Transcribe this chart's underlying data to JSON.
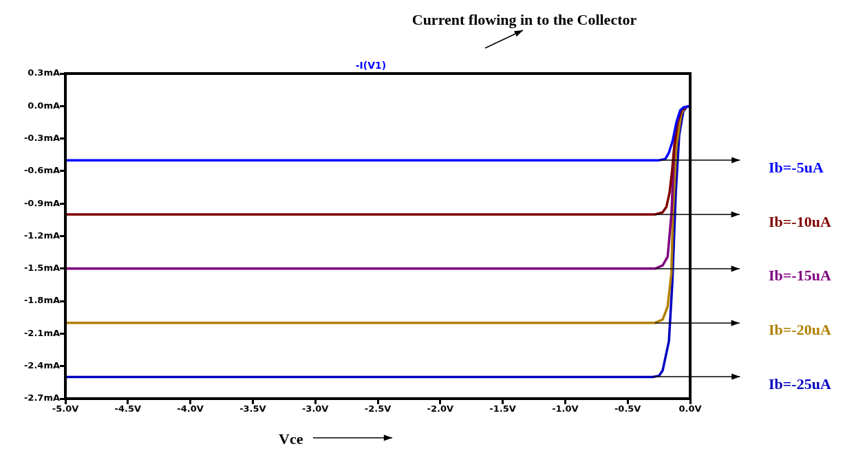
{
  "chart_data": {
    "type": "line",
    "title": "-I(V1)",
    "xlabel": "Vce",
    "annotations": [
      "Current flowing in to the Collector"
    ],
    "xlim": [
      -5,
      0
    ],
    "ylim": [
      -2.7,
      0.3
    ],
    "xticks": [
      {
        "value": -5,
        "label": "-5.0V"
      },
      {
        "value": -4.5,
        "label": "-4.5V"
      },
      {
        "value": -4,
        "label": "-4.0V"
      },
      {
        "value": -3.5,
        "label": "-3.5V"
      },
      {
        "value": -3,
        "label": "-3.0V"
      },
      {
        "value": -2.5,
        "label": "-2.5V"
      },
      {
        "value": -2,
        "label": "-2.0V"
      },
      {
        "value": -1.5,
        "label": "-1.5V"
      },
      {
        "value": -1,
        "label": "-1.0V"
      },
      {
        "value": -0.5,
        "label": "-0.5V"
      },
      {
        "value": 0,
        "label": "0.0V"
      }
    ],
    "yticks": [
      {
        "value": 0.3,
        "label": "0.3mA"
      },
      {
        "value": 0,
        "label": "0.0mA"
      },
      {
        "value": -0.3,
        "label": "-0.3mA"
      },
      {
        "value": -0.6,
        "label": "-0.6mA"
      },
      {
        "value": -0.9,
        "label": "-0.9mA"
      },
      {
        "value": -1.2,
        "label": "-1.2mA"
      },
      {
        "value": -1.5,
        "label": "-1.5mA"
      },
      {
        "value": -1.8,
        "label": "-1.8mA"
      },
      {
        "value": -2.1,
        "label": "-2.1mA"
      },
      {
        "value": -2.4,
        "label": "-2.4mA"
      },
      {
        "value": -2.7,
        "label": "-2.7mA"
      }
    ],
    "grid": false,
    "legend": false,
    "marker": "none",
    "line_style": "solid",
    "series": [
      {
        "name": "Ib=-5uA",
        "color": "#0000ff",
        "x": [
          -5,
          -0.25,
          -0.2,
          -0.17,
          -0.14,
          -0.11,
          -0.08,
          -0.05,
          0
        ],
        "values": [
          -0.5,
          -0.5,
          -0.49,
          -0.43,
          -0.32,
          -0.15,
          -0.04,
          -0.01,
          0
        ]
      },
      {
        "name": "Ib=-10uA",
        "color": "#800000",
        "x": [
          -5,
          -0.28,
          -0.22,
          -0.19,
          -0.165,
          -0.145,
          -0.127,
          -0.1,
          -0.07,
          -0.035,
          0
        ],
        "values": [
          -1,
          -1,
          -0.98,
          -0.93,
          -0.8,
          -0.6,
          -0.37,
          -0.15,
          -0.04,
          -0.01,
          0
        ]
      },
      {
        "name": "Ib=-15uA",
        "color": "#800080",
        "x": [
          -5,
          -0.28,
          -0.22,
          -0.18,
          -0.15,
          -0.127,
          -0.1
        ],
        "values": [
          -1.5,
          -1.5,
          -1.47,
          -1.39,
          -1,
          -0.37,
          -0.12
        ]
      },
      {
        "name": "Ib=-20uA",
        "color": "#b08000",
        "x": [
          -5,
          -0.28,
          -0.22,
          -0.18,
          -0.15,
          -0.138,
          -0.11,
          -0.07,
          -0.04,
          0
        ],
        "values": [
          -2,
          -2,
          -1.97,
          -1.85,
          -1.54,
          -1,
          -0.37,
          -0.07,
          -0.01,
          0
        ]
      },
      {
        "name": "Ib=-25uA",
        "color": "#0000c0",
        "x": [
          -5,
          -0.3,
          -0.25,
          -0.22,
          -0.17,
          -0.143,
          -0.115,
          -0.088,
          -0.055,
          -0.03,
          0
        ],
        "values": [
          -2.5,
          -2.5,
          -2.49,
          -2.44,
          -2.17,
          -1.64,
          -0.8,
          -0.27,
          -0.05,
          -0.01,
          0
        ]
      }
    ]
  }
}
